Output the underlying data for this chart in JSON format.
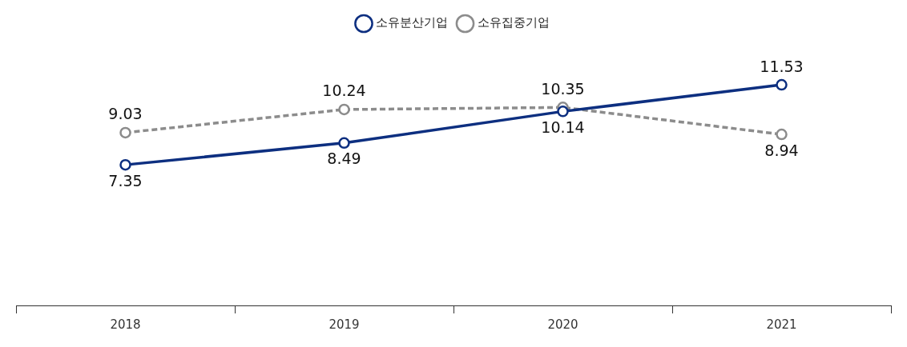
{
  "chart_data": {
    "type": "line",
    "categories": [
      "2018",
      "2019",
      "2020",
      "2021"
    ],
    "series": [
      {
        "name": "소유분산기업",
        "color": "#0d2f80",
        "values": [
          7.35,
          8.49,
          10.14,
          11.53
        ],
        "line_style": "solid"
      },
      {
        "name": "소유집중기업",
        "color": "#8c8c8c",
        "values": [
          9.03,
          10.24,
          10.35,
          8.94
        ],
        "line_style": "dashed"
      }
    ],
    "tick_labels": "x",
    "marker": "circle",
    "legend": "top",
    "data_labels": true,
    "grid": false
  }
}
